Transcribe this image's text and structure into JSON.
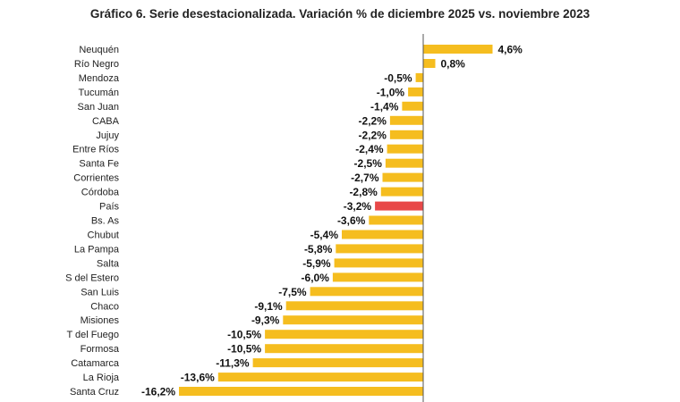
{
  "chart_data": {
    "type": "bar",
    "orientation": "horizontal",
    "title": "Gráfico 6. Serie desestacionalizada. Variación % de diciembre 2025 vs. noviembre 2023",
    "xlabel": "",
    "ylabel": "",
    "grid": false,
    "xlim": [
      -16.2,
      4.6
    ],
    "categories": [
      "Neuquén",
      "Río Negro",
      "Mendoza",
      "Tucumán",
      "San Juan",
      "CABA",
      "Jujuy",
      "Entre Ríos",
      "Santa Fe",
      "Corrientes",
      "Córdoba",
      "País",
      "Bs. As",
      "Chubut",
      "La Pampa",
      "Salta",
      "S del Estero",
      "San Luis",
      "Chaco",
      "Misiones",
      "T del Fuego",
      "Formosa",
      "Catamarca",
      "La Rioja",
      "Santa Cruz"
    ],
    "values": [
      4.6,
      0.8,
      -0.5,
      -1.0,
      -1.4,
      -2.2,
      -2.2,
      -2.4,
      -2.5,
      -2.7,
      -2.8,
      -3.2,
      -3.6,
      -5.4,
      -5.8,
      -5.9,
      -6.0,
      -7.5,
      -9.1,
      -9.3,
      -10.5,
      -10.5,
      -11.3,
      -13.6,
      -16.2
    ],
    "value_labels": [
      "4,6%",
      "0,8%",
      "-0,5%",
      "-1,0%",
      "-1,4%",
      "-2,2%",
      "-2,2%",
      "-2,4%",
      "-2,5%",
      "-2,7%",
      "-2,8%",
      "-3,2%",
      "-3,6%",
      "-5,4%",
      "-5,8%",
      "-5,9%",
      "-6,0%",
      "-7,5%",
      "-9,1%",
      "-9,3%",
      "-10,5%",
      "-10,5%",
      "-11,3%",
      "-13,6%",
      "-16,2%"
    ],
    "highlight": "País",
    "colors": {
      "bar": "#F5BD1F",
      "highlight": "#E84848",
      "axis": "#555555"
    }
  }
}
